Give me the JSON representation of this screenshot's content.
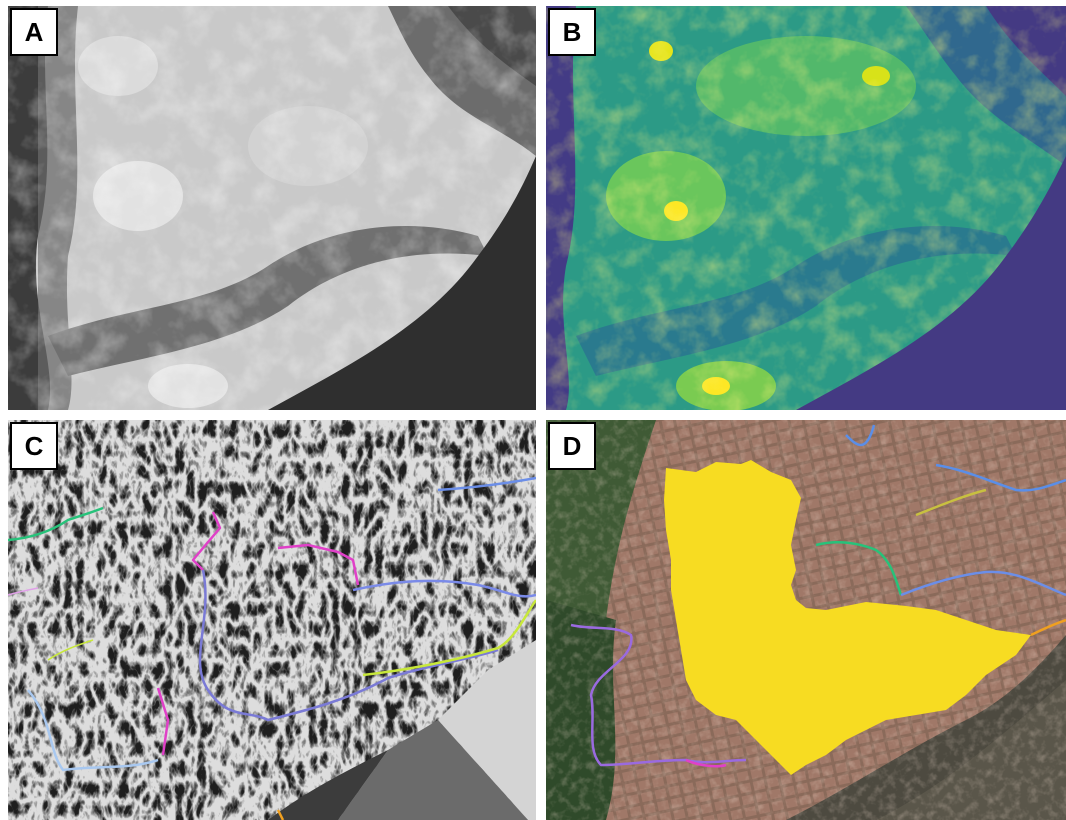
{
  "panels": [
    {
      "id": "A",
      "label": "A",
      "content": "grayscale-elevation-raster"
    },
    {
      "id": "B",
      "label": "B",
      "content": "viridis-elevation-raster"
    },
    {
      "id": "C",
      "label": "C",
      "content": "flow-direction-raster-with-stream-network"
    },
    {
      "id": "D",
      "label": "D",
      "content": "satellite-image-with-watershed-and-streams"
    }
  ],
  "colors": {
    "watershed_fill": "#f7dc22",
    "viridis_low": "#443a83",
    "viridis_mid": "#22918c",
    "viridis_high": "#fde725",
    "stream_pink": "#e040c8",
    "stream_blue": "#6b8ee8",
    "stream_green": "#27c27a",
    "stream_yellowgreen": "#c8e83a",
    "stream_purple": "#9a6ae0",
    "stream_orange": "#f0a020"
  }
}
